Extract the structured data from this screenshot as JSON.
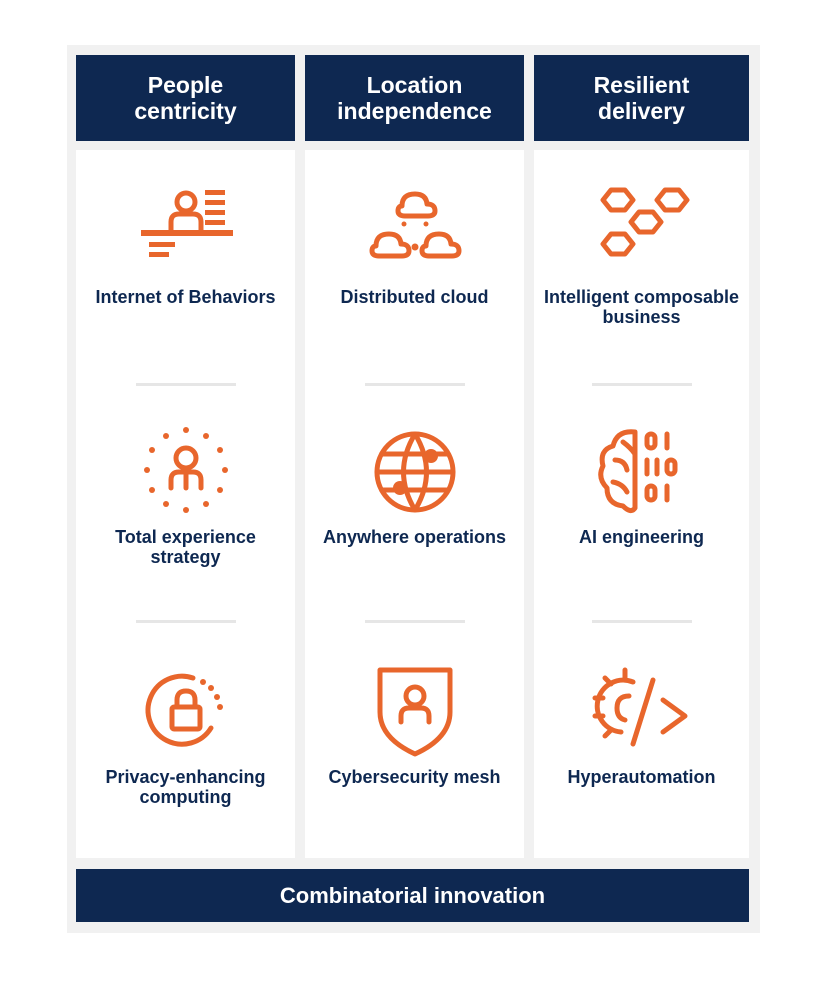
{
  "columns": [
    {
      "header": "People centricity",
      "items": [
        {
          "label": "Internet of Behaviors",
          "icon": "person-at-desk-icon"
        },
        {
          "label": "Total experience strategy",
          "icon": "person-in-dotted-circle-icon"
        },
        {
          "label": "Privacy-enhancing computing",
          "icon": "lock-in-circle-icon"
        }
      ]
    },
    {
      "header": "Location independence",
      "items": [
        {
          "label": "Distributed cloud",
          "icon": "cloud-network-icon"
        },
        {
          "label": "Anywhere operations",
          "icon": "globe-network-icon"
        },
        {
          "label": "Cybersecurity mesh",
          "icon": "shield-person-icon"
        }
      ]
    },
    {
      "header": "Resilient delivery",
      "items": [
        {
          "label": "Intelligent composable business",
          "icon": "hexagons-icon"
        },
        {
          "label": "AI engineering",
          "icon": "brain-binary-icon"
        },
        {
          "label": "Hyperautomation",
          "icon": "gear-code-icon"
        }
      ]
    }
  ],
  "footer": "Combinatorial innovation",
  "colors": {
    "navy": "#0e2851",
    "orange": "#e8662c",
    "panel": "#f1f1f1"
  }
}
